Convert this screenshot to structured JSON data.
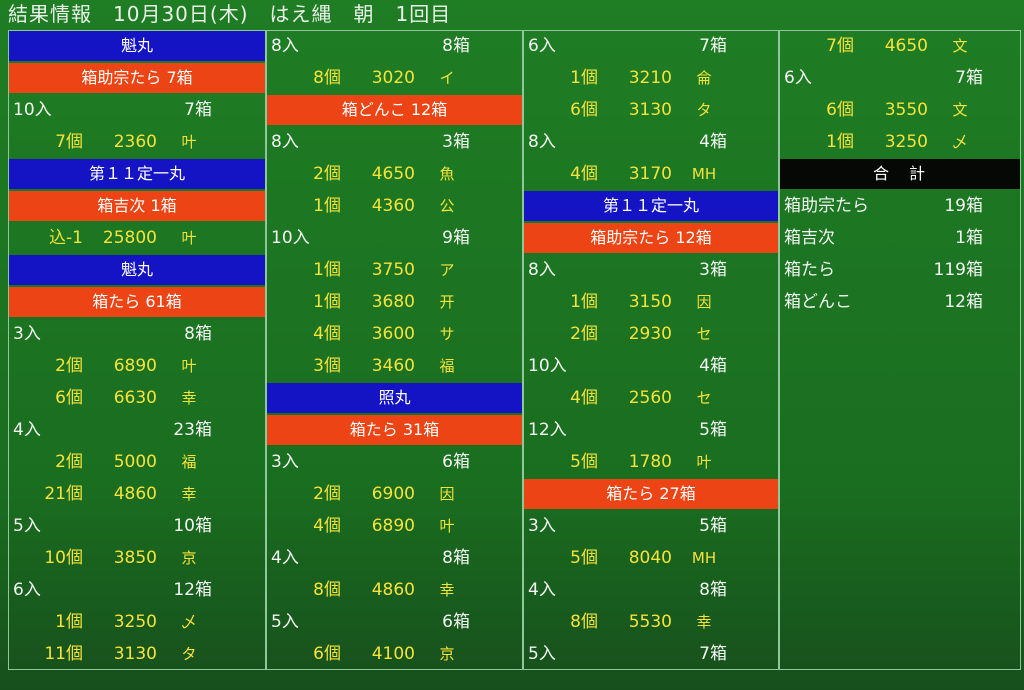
{
  "header": {
    "title": "結果情報　10月30日(木)　はえ縄　朝　1回目"
  },
  "columns": [
    {
      "rows": [
        {
          "vessel": "魁丸"
        },
        {
          "lot": "箱助宗たら 7箱"
        },
        {
          "size": "10入",
          "boxes": "7箱"
        },
        {
          "count": "7個",
          "price": 2360,
          "mark": "叶"
        },
        {
          "vessel": "第１１定一丸"
        },
        {
          "lot": "箱吉次 1箱"
        },
        {
          "count": "込-1",
          "price": 25800,
          "mark": "叶"
        },
        {
          "vessel": "魁丸"
        },
        {
          "lot": "箱たら 61箱"
        },
        {
          "size": "3入",
          "boxes": "8箱"
        },
        {
          "count": "2個",
          "price": 6890,
          "mark": "叶"
        },
        {
          "count": "6個",
          "price": 6630,
          "mark": "幸"
        },
        {
          "size": "4入",
          "boxes": "23箱"
        },
        {
          "count": "2個",
          "price": 5000,
          "mark": "福"
        },
        {
          "count": "21個",
          "price": 4860,
          "mark": "幸"
        },
        {
          "size": "5入",
          "boxes": "10箱"
        },
        {
          "count": "10個",
          "price": 3850,
          "mark": "京"
        },
        {
          "size": "6入",
          "boxes": "12箱"
        },
        {
          "count": "1個",
          "price": 3250,
          "mark": "乄"
        },
        {
          "count": "11個",
          "price": 3130,
          "mark": "タ"
        }
      ]
    },
    {
      "rows": [
        {
          "size": "8入",
          "boxes": "8箱"
        },
        {
          "count": "8個",
          "price": 3020,
          "mark": "イ"
        },
        {
          "lot": "箱どんこ 12箱"
        },
        {
          "size": "8入",
          "boxes": "3箱"
        },
        {
          "count": "2個",
          "price": 4650,
          "mark": "魚"
        },
        {
          "count": "1個",
          "price": 4360,
          "mark": "公"
        },
        {
          "size": "10入",
          "boxes": "9箱"
        },
        {
          "count": "1個",
          "price": 3750,
          "mark": "ア"
        },
        {
          "count": "1個",
          "price": 3680,
          "mark": "开"
        },
        {
          "count": "4個",
          "price": 3600,
          "mark": "サ"
        },
        {
          "count": "3個",
          "price": 3460,
          "mark": "福"
        },
        {
          "vessel": "照丸"
        },
        {
          "lot": "箱たら 31箱"
        },
        {
          "size": "3入",
          "boxes": "6箱"
        },
        {
          "count": "2個",
          "price": 6900,
          "mark": "因"
        },
        {
          "count": "4個",
          "price": 6890,
          "mark": "叶"
        },
        {
          "size": "4入",
          "boxes": "8箱"
        },
        {
          "count": "8個",
          "price": 4860,
          "mark": "幸"
        },
        {
          "size": "5入",
          "boxes": "6箱"
        },
        {
          "count": "6個",
          "price": 4100,
          "mark": "京"
        }
      ]
    },
    {
      "rows": [
        {
          "size": "6入",
          "boxes": "7箱"
        },
        {
          "count": "1個",
          "price": 3210,
          "mark": "侖"
        },
        {
          "count": "6個",
          "price": 3130,
          "mark": "タ"
        },
        {
          "size": "8入",
          "boxes": "4箱"
        },
        {
          "count": "4個",
          "price": 3170,
          "mark": "MH"
        },
        {
          "vessel": "第１１定一丸"
        },
        {
          "lot": "箱助宗たら 12箱"
        },
        {
          "size": "8入",
          "boxes": "3箱"
        },
        {
          "count": "1個",
          "price": 3150,
          "mark": "因"
        },
        {
          "count": "2個",
          "price": 2930,
          "mark": "セ"
        },
        {
          "size": "10入",
          "boxes": "4箱"
        },
        {
          "count": "4個",
          "price": 2560,
          "mark": "セ"
        },
        {
          "size": "12入",
          "boxes": "5箱"
        },
        {
          "count": "5個",
          "price": 1780,
          "mark": "叶"
        },
        {
          "lot": "箱たら 27箱"
        },
        {
          "size": "3入",
          "boxes": "5箱"
        },
        {
          "count": "5個",
          "price": 8040,
          "mark": "MH"
        },
        {
          "size": "4入",
          "boxes": "8箱"
        },
        {
          "count": "8個",
          "price": 5530,
          "mark": "幸"
        },
        {
          "size": "5入",
          "boxes": "7箱"
        }
      ]
    },
    {
      "rows": [
        {
          "count": "7個",
          "price": 4650,
          "mark": "文"
        },
        {
          "size": "6入",
          "boxes": "7箱"
        },
        {
          "count": "6個",
          "price": 3550,
          "mark": "文"
        },
        {
          "count": "1個",
          "price": 3250,
          "mark": "乄"
        }
      ],
      "totals": {
        "title": "合　計",
        "rows": [
          {
            "item": "箱助宗たら",
            "boxes": "19箱"
          },
          {
            "item": "箱吉次",
            "boxes": "1箱"
          },
          {
            "item": "箱たら",
            "boxes": "119箱"
          },
          {
            "item": "箱どんこ",
            "boxes": "12箱"
          }
        ]
      }
    }
  ]
}
